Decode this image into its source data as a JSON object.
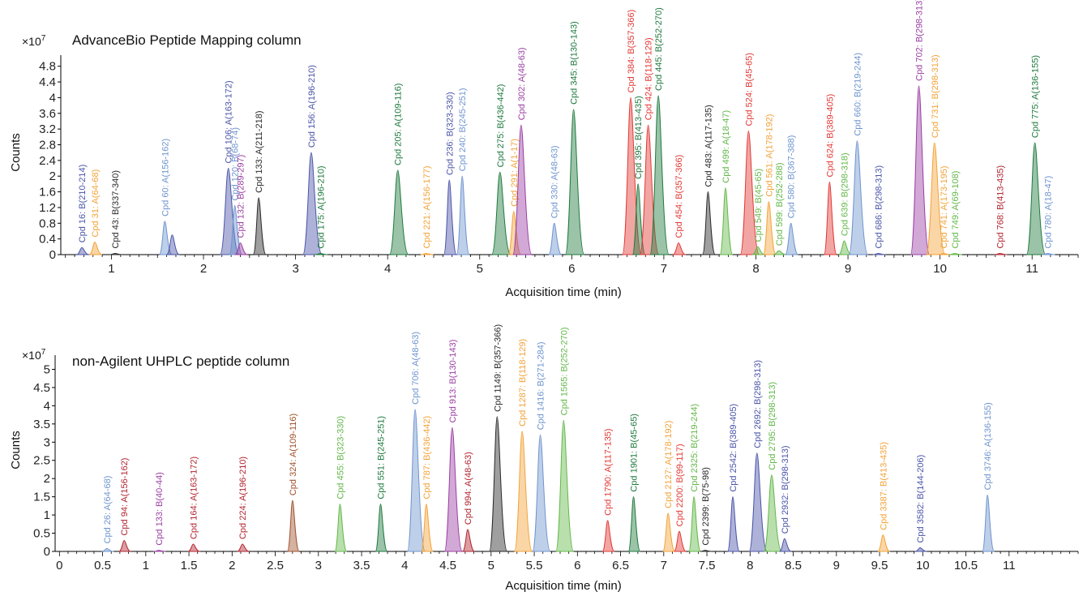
{
  "colors": {
    "blue": "#4b55a8",
    "lightblue": "#6f95cf",
    "orange": "#f3a33a",
    "black": "#2a2a2a",
    "purple": "#9b3fa3",
    "green": "#1f7a3f",
    "lightgreen": "#63b84a",
    "red": "#e23a36",
    "darkred": "#b22530",
    "brown": "#a0522d"
  },
  "chart_data": [
    {
      "type": "area",
      "title": "AdvanceBio Peptide Mapping column",
      "xlabel": "Acquisition time (min)",
      "ylabel": "Counts",
      "y_scale_label": "×10",
      "y_scale_exponent": "7",
      "xlim": [
        0.45,
        11.5
      ],
      "ylim": [
        0,
        5.0
      ],
      "xticks": [
        1,
        2,
        3,
        4,
        5,
        6,
        7,
        8,
        9,
        10,
        11
      ],
      "yticks": [
        0,
        0.4,
        0.8,
        1.2,
        1.6,
        2,
        2.4,
        2.8,
        3.2,
        3.6,
        4,
        4.4,
        4.8
      ],
      "peaks": [
        {
          "x": 0.68,
          "y": 0.18,
          "label": "Cpd 16: B(210-214)",
          "color": "blue"
        },
        {
          "x": 0.82,
          "y": 0.32,
          "label": "Cpd 31: A(64-68)",
          "color": "orange"
        },
        {
          "x": 1.04,
          "y": 0.03,
          "label": "Cpd 43: B(337-340)",
          "color": "black"
        },
        {
          "x": 1.58,
          "y": 0.85,
          "label": "Cpd 60: A(156-162)",
          "color": "lightblue"
        },
        {
          "x": 1.66,
          "y": 0.5,
          "label": "",
          "color": "blue"
        },
        {
          "x": 2.27,
          "y": 2.2,
          "label": "Cpd 106: A(163-172)",
          "color": "blue"
        },
        {
          "x": 2.34,
          "y": 1.25,
          "label": "Cpd 120: B(68-74)",
          "color": "lightblue"
        },
        {
          "x": 2.4,
          "y": 0.3,
          "label": "Cpd 132: B(289-297)",
          "color": "purple"
        },
        {
          "x": 2.6,
          "y": 1.45,
          "label": "Cpd 133: A(211-218)",
          "color": "black"
        },
        {
          "x": 3.17,
          "y": 2.6,
          "label": "Cpd 156: A(196-210)",
          "color": "blue"
        },
        {
          "x": 3.27,
          "y": 0.03,
          "label": "Cpd 175: A(196-210)",
          "color": "green"
        },
        {
          "x": 4.11,
          "y": 2.15,
          "label": "Cpd 205: A(109-116)",
          "color": "green"
        },
        {
          "x": 4.42,
          "y": 0.03,
          "label": "Cpd 221: A(156-177)",
          "color": "orange"
        },
        {
          "x": 4.67,
          "y": 1.9,
          "label": "Cpd 236: B(323-330)",
          "color": "blue"
        },
        {
          "x": 4.81,
          "y": 2.0,
          "label": "Cpd 240: B(245-251)",
          "color": "lightblue"
        },
        {
          "x": 5.22,
          "y": 2.1,
          "label": "Cpd 275: B(436-442)",
          "color": "green"
        },
        {
          "x": 5.37,
          "y": 1.1,
          "label": "Cpd 291: A(1-17)",
          "color": "orange"
        },
        {
          "x": 5.45,
          "y": 3.3,
          "label": "Cpd 302: A(48-63)",
          "color": "purple"
        },
        {
          "x": 5.81,
          "y": 0.8,
          "label": "Cpd 330: A(48-63)",
          "color": "lightblue"
        },
        {
          "x": 6.02,
          "y": 3.7,
          "label": "Cpd 345: B(130-143)",
          "color": "green"
        },
        {
          "x": 6.64,
          "y": 4.0,
          "label": "Cpd 384: B(357-366)",
          "color": "red"
        },
        {
          "x": 6.72,
          "y": 1.8,
          "label": "Cpd 395: B(413-435)",
          "color": "green"
        },
        {
          "x": 6.83,
          "y": 3.3,
          "label": "Cpd 424: B(118-129)",
          "color": "red"
        },
        {
          "x": 6.94,
          "y": 4.05,
          "label": "Cpd 445: B(252-270)",
          "color": "green"
        },
        {
          "x": 7.16,
          "y": 0.3,
          "label": "Cpd 454: B(357-366)",
          "color": "red"
        },
        {
          "x": 7.48,
          "y": 1.6,
          "label": "Cpd 483: A(117-135)",
          "color": "black"
        },
        {
          "x": 7.67,
          "y": 1.7,
          "label": "Cpd 499: A(18-47)",
          "color": "lightgreen"
        },
        {
          "x": 7.92,
          "y": 3.15,
          "label": "Cpd 524: B(45-65)",
          "color": "red"
        },
        {
          "x": 8.02,
          "y": 0.2,
          "label": "Cpd 549: B(45-65)",
          "color": "lightgreen"
        },
        {
          "x": 8.14,
          "y": 1.35,
          "label": "Cpd 561: A(178-192)",
          "color": "orange"
        },
        {
          "x": 8.25,
          "y": 0.1,
          "label": "Cpd 599: B(252-288)",
          "color": "lightgreen"
        },
        {
          "x": 8.38,
          "y": 0.8,
          "label": "Cpd 580: B(367-388)",
          "color": "lightblue"
        },
        {
          "x": 8.8,
          "y": 1.85,
          "label": "Cpd 624: B(389-405)",
          "color": "red"
        },
        {
          "x": 8.96,
          "y": 0.35,
          "label": "Cpd 639: B(298-318)",
          "color": "lightgreen"
        },
        {
          "x": 9.1,
          "y": 2.9,
          "label": "Cpd 660: B(219-244)",
          "color": "lightblue"
        },
        {
          "x": 9.33,
          "y": 0.03,
          "label": "Cpd 686: B(298-313)",
          "color": "blue"
        },
        {
          "x": 9.77,
          "y": 4.3,
          "label": "Cpd 702: B(298-313)",
          "color": "purple"
        },
        {
          "x": 9.94,
          "y": 2.85,
          "label": "Cpd 731: B(298-313)",
          "color": "orange"
        },
        {
          "x": 10.04,
          "y": 0.03,
          "label": "Cpd 741: A(173-195)",
          "color": "orange"
        },
        {
          "x": 10.16,
          "y": 0.03,
          "label": "Cpd 749: A(69-108)",
          "color": "lightgreen"
        },
        {
          "x": 10.65,
          "y": 0.03,
          "label": "Cpd 768: B(413-435)",
          "color": "darkred"
        },
        {
          "x": 11.03,
          "y": 2.85,
          "label": "Cpd 775: A(136-155)",
          "color": "green"
        },
        {
          "x": 11.17,
          "y": 0.03,
          "label": "Cpd 780: A(18-47)",
          "color": "lightblue"
        }
      ]
    },
    {
      "type": "area",
      "title": "non-Agilent UHPLC peptide column",
      "xlabel": "Acquisition time (min)",
      "ylabel": "Counts",
      "y_scale_label": "×10",
      "y_scale_exponent": "7",
      "xlim": [
        -0.05,
        11.8
      ],
      "ylim": [
        0,
        5.3
      ],
      "xticks": [
        0,
        0.5,
        1,
        1.5,
        2,
        2.5,
        3,
        3.5,
        4,
        4.5,
        5,
        5.5,
        6,
        6.5,
        7,
        7.5,
        8,
        8.5,
        9,
        9.5,
        10,
        10.5,
        11
      ],
      "xtick_labels": [
        "0",
        "0.5",
        "1",
        "1.5",
        "2",
        "2.5",
        "3",
        "3.5",
        "4",
        "4.5",
        "5",
        "5.5",
        "6",
        "6.5",
        "7",
        "7.5",
        "8",
        "8.5",
        "9",
        "9.5",
        "10",
        "10.5",
        "11"
      ],
      "yticks": [
        0,
        0.5,
        1,
        1.5,
        2,
        2.5,
        3,
        3.5,
        4,
        4.5,
        5
      ],
      "peaks": [
        {
          "x": 0.55,
          "y": 0.08,
          "label": "Cpd 26: A(64-68)",
          "color": "lightblue"
        },
        {
          "x": 0.75,
          "y": 0.3,
          "label": "Cpd 94: A(156-162)",
          "color": "darkred"
        },
        {
          "x": 1.15,
          "y": 0.03,
          "label": "Cpd 133: B(40-44)",
          "color": "purple"
        },
        {
          "x": 1.55,
          "y": 0.2,
          "label": "Cpd 164: A(163-172)",
          "color": "darkred"
        },
        {
          "x": 2.12,
          "y": 0.2,
          "label": "Cpd 224: A(196-210)",
          "color": "darkred"
        },
        {
          "x": 2.7,
          "y": 1.4,
          "label": "Cpd 324: A(109-116)",
          "color": "brown"
        },
        {
          "x": 3.25,
          "y": 1.3,
          "label": "Cpd 455: B(323-330)",
          "color": "lightgreen"
        },
        {
          "x": 3.72,
          "y": 1.3,
          "label": "Cpd 551: B(245-251)",
          "color": "green"
        },
        {
          "x": 4.12,
          "y": 3.9,
          "label": "Cpd 706: A(48-63)",
          "color": "lightblue"
        },
        {
          "x": 4.25,
          "y": 1.3,
          "label": "Cpd 787: B(436-442)",
          "color": "orange"
        },
        {
          "x": 4.55,
          "y": 3.4,
          "label": "Cpd 913: B(130-143)",
          "color": "purple"
        },
        {
          "x": 4.73,
          "y": 0.6,
          "label": "Cpd 994: A(48-63)",
          "color": "darkred"
        },
        {
          "x": 5.07,
          "y": 3.7,
          "label": "Cpd 1149: B(357-366)",
          "color": "black"
        },
        {
          "x": 5.36,
          "y": 3.3,
          "label": "Cpd 1287: B(118-129)",
          "color": "orange"
        },
        {
          "x": 5.57,
          "y": 3.2,
          "label": "Cpd 1416: B(271-284)",
          "color": "lightblue"
        },
        {
          "x": 5.84,
          "y": 3.6,
          "label": "Cpd 1565: B(252-270)",
          "color": "lightgreen"
        },
        {
          "x": 6.35,
          "y": 0.85,
          "label": "Cpd 1790: A(117-135)",
          "color": "red"
        },
        {
          "x": 6.65,
          "y": 1.5,
          "label": "Cpd 1901: B(45-65)",
          "color": "green"
        },
        {
          "x": 7.05,
          "y": 1.05,
          "label": "Cpd 2127: A(178-192)",
          "color": "orange"
        },
        {
          "x": 7.18,
          "y": 0.55,
          "label": "Cpd 2200: B(99-117)",
          "color": "red"
        },
        {
          "x": 7.35,
          "y": 1.5,
          "label": "Cpd 2325: B(219-244)",
          "color": "lightgreen"
        },
        {
          "x": 7.48,
          "y": 0.03,
          "label": "Cpd 2399: B(75-98)",
          "color": "black"
        },
        {
          "x": 7.8,
          "y": 1.5,
          "label": "Cpd 2542: B(389-405)",
          "color": "blue"
        },
        {
          "x": 8.08,
          "y": 2.7,
          "label": "Cpd 2692: B(298-313)",
          "color": "blue"
        },
        {
          "x": 8.25,
          "y": 2.1,
          "label": "Cpd 2795: B(298-313)",
          "color": "lightgreen"
        },
        {
          "x": 8.4,
          "y": 0.35,
          "label": "Cpd 2932: B(298-313)",
          "color": "blue"
        },
        {
          "x": 9.54,
          "y": 0.45,
          "label": "Cpd 3387: B(413-435)",
          "color": "orange"
        },
        {
          "x": 9.97,
          "y": 0.1,
          "label": "Cpd 3582: B(144-206)",
          "color": "blue"
        },
        {
          "x": 10.75,
          "y": 1.55,
          "label": "Cpd 3746: A(136-155)",
          "color": "lightblue"
        }
      ]
    }
  ]
}
